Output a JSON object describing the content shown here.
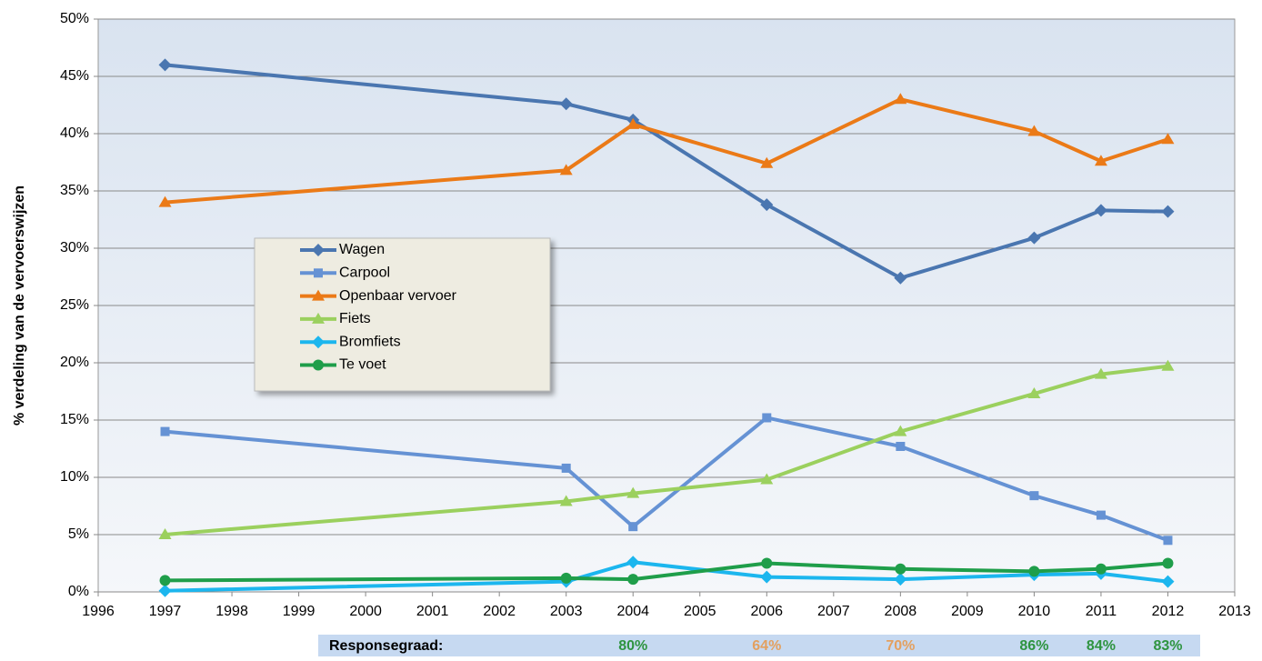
{
  "chart_data": {
    "type": "line",
    "y_label": "% verdeling van de vervoerswijzen",
    "x": [
      1997,
      2003,
      2004,
      2006,
      2008,
      2010,
      2011,
      2012
    ],
    "xlim": [
      1996,
      2013
    ],
    "xticks": [
      1996,
      1997,
      1998,
      1999,
      2000,
      2001,
      2002,
      2003,
      2004,
      2005,
      2006,
      2007,
      2008,
      2009,
      2010,
      2011,
      2012,
      2013
    ],
    "ylim": [
      0,
      50
    ],
    "yticks": [
      {
        "value": 0,
        "label": "0%"
      },
      {
        "value": 5,
        "label": "5%"
      },
      {
        "value": 10,
        "label": "10%"
      },
      {
        "value": 15,
        "label": "15%"
      },
      {
        "value": 20,
        "label": "20%"
      },
      {
        "value": 25,
        "label": "25%"
      },
      {
        "value": 30,
        "label": "30%"
      },
      {
        "value": 35,
        "label": "35%"
      },
      {
        "value": 40,
        "label": "40%"
      },
      {
        "value": 45,
        "label": "45%"
      },
      {
        "value": 50,
        "label": "50%"
      }
    ],
    "grid": true,
    "legend": "left",
    "series": [
      {
        "name": "Wagen",
        "color": "#4a76b0",
        "marker": "diamond",
        "values": [
          46,
          42.6,
          41.2,
          33.8,
          27.4,
          30.9,
          33.3,
          33.2
        ]
      },
      {
        "name": "Carpool",
        "color": "#6592d4",
        "marker": "square",
        "values": [
          14,
          10.8,
          5.7,
          15.2,
          12.7,
          8.4,
          6.7,
          4.5
        ]
      },
      {
        "name": "Openbaar vervoer",
        "color": "#eb7a17",
        "marker": "triangle",
        "values": [
          34,
          36.8,
          40.8,
          37.4,
          43,
          40.2,
          37.6,
          39.5
        ]
      },
      {
        "name": "Fiets",
        "color": "#9bd05e",
        "marker": "triangle",
        "values": [
          5,
          7.9,
          8.6,
          9.8,
          14,
          17.3,
          19,
          19.7
        ]
      },
      {
        "name": "Bromfiets",
        "color": "#1cb6ee",
        "marker": "diamond",
        "values": [
          0.1,
          0.9,
          2.6,
          1.3,
          1.1,
          1.5,
          1.6,
          0.9
        ]
      },
      {
        "name": "Te voet",
        "color": "#1f9e4a",
        "marker": "circle",
        "values": [
          1,
          1.2,
          1.1,
          2.5,
          2,
          1.8,
          2,
          2.5
        ]
      }
    ],
    "response": {
      "label": "Responsegraad:",
      "x": [
        2004,
        2006,
        2008,
        2010,
        2011,
        2012
      ],
      "labels": [
        "80%",
        "64%",
        "70%",
        "86%",
        "84%",
        "83%"
      ],
      "colors": [
        "#2e9440",
        "#e3a060",
        "#e3a060",
        "#2e9440",
        "#2e9440",
        "#2e9440"
      ]
    }
  }
}
